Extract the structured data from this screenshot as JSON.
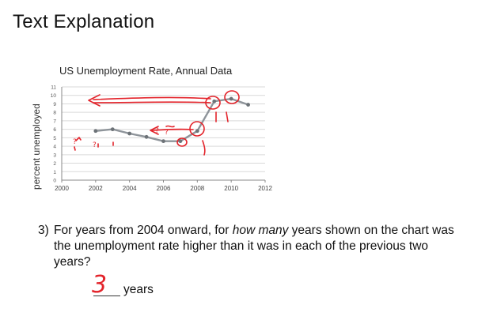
{
  "page": {
    "title": "Text Explanation"
  },
  "chart_data": {
    "type": "line",
    "title": "US Unemployment Rate, Annual Data",
    "ylabel": "percent unemployed",
    "xlabel": "",
    "xlim": [
      2000,
      2012
    ],
    "ylim": [
      0,
      11
    ],
    "x_ticks": [
      2000,
      2002,
      2004,
      2006,
      2008,
      2010,
      2012
    ],
    "y_ticks": [
      0,
      1,
      2,
      3,
      4,
      5,
      6,
      7,
      8,
      9,
      10,
      11
    ],
    "grid": true,
    "series": [
      {
        "x": [
          2002,
          2003,
          2004,
          2005,
          2006,
          2007,
          2008,
          2009,
          2010,
          2011
        ],
        "y": [
          5.8,
          6.0,
          5.5,
          5.1,
          4.6,
          4.6,
          5.8,
          9.3,
          9.6,
          8.9
        ]
      }
    ],
    "line_color": "#8e949a",
    "annotation_color": "#e3242b",
    "annotation_marks": [
      "?",
      "?",
      "?",
      "?"
    ]
  },
  "question": {
    "number": "3)",
    "text_before": "For years from 2004 onward, for ",
    "emphasis": "how many",
    "text_after": " years shown on the chart was the unemployment rate higher than it was in each of the previous two years?"
  },
  "answer": {
    "value": "3",
    "unit": "years"
  }
}
